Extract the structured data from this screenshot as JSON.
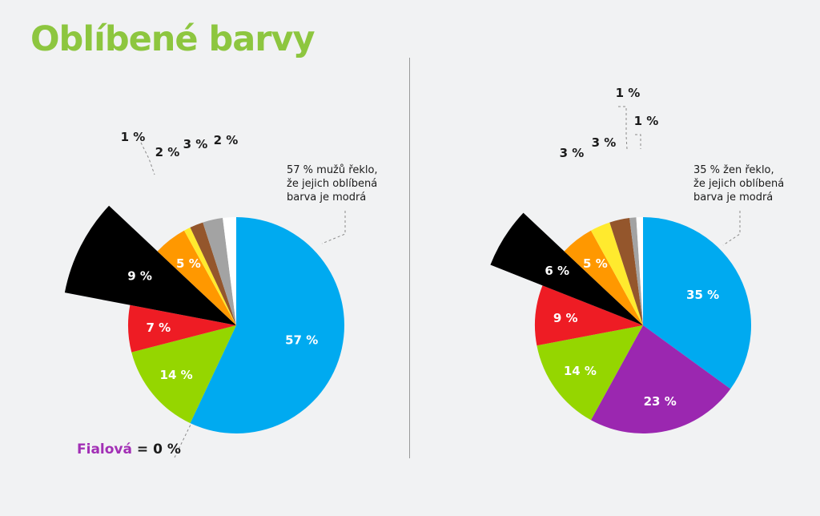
{
  "title": "Oblíbené barvy",
  "fialova_note": {
    "name": "Fialová",
    "rest": "= 0 %"
  },
  "chart_data": [
    {
      "type": "pie",
      "group": "muži",
      "annotation": [
        "57 % mužů řeklo,",
        "že jejich oblíbená",
        "barva je modrá"
      ],
      "slices": [
        {
          "label": "57 %",
          "value": 57,
          "color": "#00aaf0"
        },
        {
          "label": "14 %",
          "value": 14,
          "color": "#95d600"
        },
        {
          "label": "7 %",
          "value": 7,
          "color": "#ee1c24"
        },
        {
          "label": "9 %",
          "value": 9,
          "color": "#000000",
          "exploded": true
        },
        {
          "label": "5 %",
          "value": 5,
          "color": "#ff9800"
        },
        {
          "label": "1 %",
          "value": 1,
          "color": "#ffea2e"
        },
        {
          "label": "2 %",
          "value": 2,
          "color": "#94562c"
        },
        {
          "label": "3 %",
          "value": 3,
          "color": "#a3a3a3"
        },
        {
          "label": "2 %",
          "value": 2,
          "color": "#ffffff"
        }
      ]
    },
    {
      "type": "pie",
      "group": "ženy",
      "annotation": [
        "35 % žen řeklo,",
        "že jejich oblíbená",
        "barva je modrá"
      ],
      "slices": [
        {
          "label": "35 %",
          "value": 35,
          "color": "#00aaf0"
        },
        {
          "label": "23 %",
          "value": 23,
          "color": "#9b27b0"
        },
        {
          "label": "14 %",
          "value": 14,
          "color": "#95d600"
        },
        {
          "label": "9 %",
          "value": 9,
          "color": "#ee1c24"
        },
        {
          "label": "6 %",
          "value": 6,
          "color": "#000000",
          "exploded": true
        },
        {
          "label": "5 %",
          "value": 5,
          "color": "#ff9800"
        },
        {
          "label": "3 %",
          "value": 3,
          "color": "#ffea2e"
        },
        {
          "label": "3 %",
          "value": 3,
          "color": "#94562c"
        },
        {
          "label": "1 %",
          "value": 1,
          "color": "#a3a3a3"
        },
        {
          "label": "1 %",
          "value": 1,
          "color": "#ffffff"
        }
      ]
    }
  ]
}
